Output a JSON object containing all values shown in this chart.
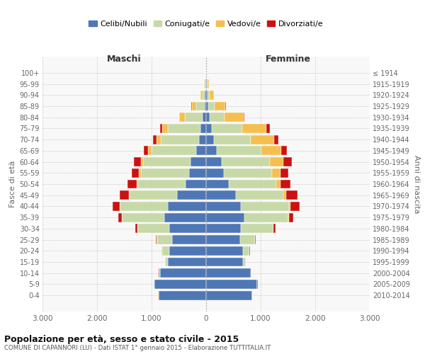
{
  "age_groups": [
    "0-4",
    "5-9",
    "10-14",
    "15-19",
    "20-24",
    "25-29",
    "30-34",
    "35-39",
    "40-44",
    "45-49",
    "50-54",
    "55-59",
    "60-64",
    "65-69",
    "70-74",
    "75-79",
    "80-84",
    "85-89",
    "90-94",
    "95-99",
    "100+"
  ],
  "birth_years": [
    "2010-2014",
    "2005-2009",
    "2000-2004",
    "1995-1999",
    "1990-1994",
    "1985-1989",
    "1980-1984",
    "1975-1979",
    "1970-1974",
    "1965-1969",
    "1960-1964",
    "1955-1959",
    "1950-1954",
    "1945-1949",
    "1940-1944",
    "1935-1939",
    "1930-1934",
    "1925-1929",
    "1920-1924",
    "1915-1919",
    "≤ 1914"
  ],
  "males": {
    "celibi": [
      870,
      950,
      850,
      700,
      680,
      620,
      680,
      760,
      700,
      530,
      380,
      310,
      280,
      180,
      130,
      100,
      60,
      30,
      20,
      10,
      5
    ],
    "coniugati": [
      5,
      10,
      10,
      50,
      130,
      280,
      580,
      780,
      880,
      870,
      870,
      890,
      870,
      820,
      700,
      600,
      330,
      150,
      50,
      15,
      5
    ],
    "vedovi": [
      2,
      2,
      2,
      2,
      2,
      5,
      5,
      5,
      10,
      10,
      20,
      30,
      50,
      60,
      80,
      100,
      100,
      80,
      30,
      10,
      2
    ],
    "divorziati": [
      2,
      2,
      2,
      5,
      10,
      20,
      30,
      60,
      130,
      180,
      170,
      130,
      130,
      80,
      70,
      50,
      10,
      10,
      5,
      2,
      1
    ]
  },
  "females": {
    "nubili": [
      840,
      930,
      820,
      680,
      670,
      620,
      640,
      700,
      640,
      550,
      410,
      320,
      290,
      190,
      140,
      100,
      60,
      35,
      20,
      10,
      5
    ],
    "coniugate": [
      4,
      8,
      8,
      45,
      120,
      270,
      590,
      810,
      880,
      870,
      870,
      890,
      880,
      820,
      680,
      560,
      280,
      120,
      40,
      15,
      5
    ],
    "vedove": [
      2,
      2,
      2,
      3,
      5,
      5,
      10,
      15,
      30,
      50,
      90,
      150,
      250,
      370,
      430,
      450,
      350,
      200,
      80,
      25,
      5
    ],
    "divorziate": [
      2,
      2,
      2,
      5,
      10,
      20,
      35,
      70,
      170,
      200,
      180,
      140,
      150,
      100,
      80,
      60,
      10,
      10,
      5,
      2,
      1
    ]
  },
  "colors": {
    "celibi_nubili": "#4f77b5",
    "coniugati": "#c8d9a8",
    "vedovi": "#f5bf4f",
    "divorziati": "#cc1111"
  },
  "title": "Popolazione per età, sesso e stato civile - 2015",
  "subtitle": "COMUNE DI CAPANNORI (LU) - Dati ISTAT 1° gennaio 2015 - Elaborazione TUTTITALIA.IT",
  "xlabel_left": "Maschi",
  "xlabel_right": "Femmine",
  "ylabel_left": "Fasce di età",
  "ylabel_right": "Anni di nascita",
  "xlim": 3000,
  "xticklabels": [
    "3.000",
    "2.000",
    "1.000",
    "0",
    "1.000",
    "2.000",
    "3.000"
  ],
  "legend_labels": [
    "Celibi/Nubili",
    "Coniugati/e",
    "Vedovi/e",
    "Divorziati/e"
  ],
  "bg_color": "#f8f8f8",
  "bar_height": 0.82
}
